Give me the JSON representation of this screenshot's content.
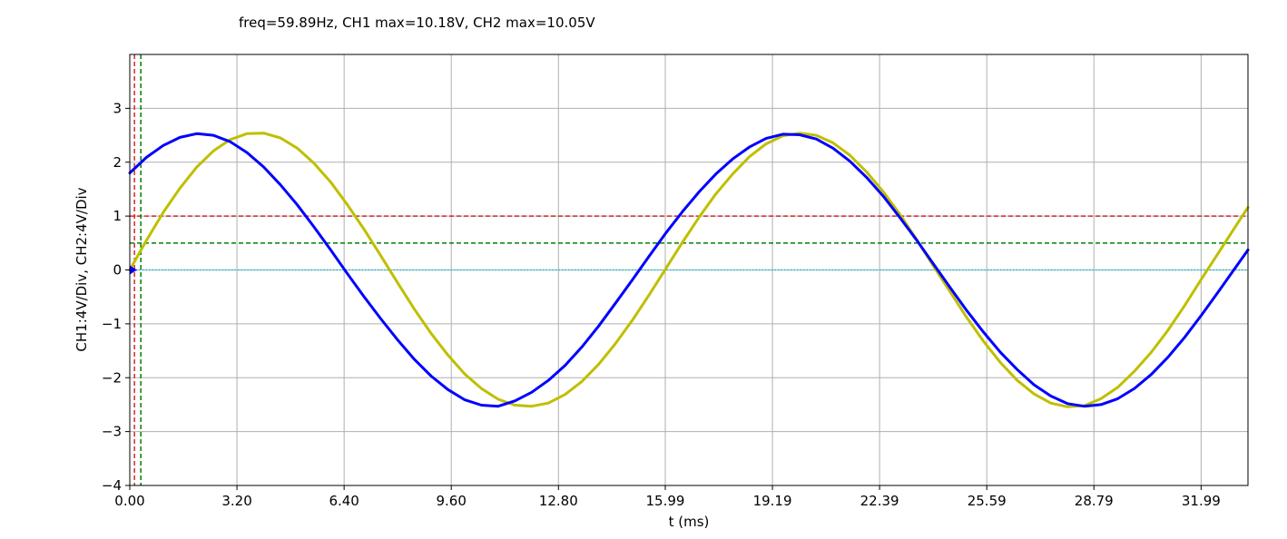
{
  "chart_data": {
    "type": "line",
    "title": "freq=59.89Hz, CH1 max=10.18V, CH2 max=10.05V",
    "xlabel": "t (ms)",
    "ylabel": "CH1:4V/Div, CH2:4V/Div",
    "xlim": [
      0,
      33.39
    ],
    "ylim": [
      -4,
      4
    ],
    "x_ticks": [
      0,
      3.2,
      6.4,
      9.6,
      12.8,
      15.99,
      19.19,
      22.39,
      25.59,
      28.79,
      31.99
    ],
    "x_tick_labels": [
      "0.00",
      "3.20",
      "6.40",
      "9.60",
      "12.80",
      "15.99",
      "19.19",
      "22.39",
      "25.59",
      "28.79",
      "31.99"
    ],
    "y_ticks": [
      -4,
      -3,
      -2,
      -1,
      0,
      1,
      2,
      3
    ],
    "y_tick_labels": [
      "−4",
      "−3",
      "−2",
      "−1",
      "0",
      "1",
      "2",
      "3"
    ],
    "grid": true,
    "colors": {
      "ch1": "#0000ff",
      "ch2": "#bfbf00",
      "ch1_trigger": "#d62728",
      "ch2_trigger": "#008000",
      "zero_line": "#17becf",
      "grid": "#b0b0b0"
    },
    "series": [
      {
        "key": "ch1",
        "x": [
          0,
          0.5,
          1,
          1.5,
          2,
          2.5,
          3,
          3.5,
          4,
          4.5,
          5,
          5.5,
          6,
          6.5,
          7,
          7.5,
          8,
          8.5,
          9,
          9.5,
          10,
          10.5,
          11,
          11.5,
          12,
          12.5,
          13,
          13.5,
          14,
          14.5,
          15,
          15.5,
          16,
          16.5,
          17,
          17.5,
          18,
          18.5,
          19,
          19.5,
          20,
          20.5,
          21,
          21.5,
          22,
          22.5,
          23,
          23.5,
          24,
          24.5,
          25,
          25.5,
          26,
          26.5,
          27,
          27.5,
          28,
          28.5,
          29,
          29.5,
          30,
          30.5,
          31,
          31.5,
          32,
          32.5,
          33,
          33.39
        ],
        "values": [
          1.8,
          2.09,
          2.31,
          2.46,
          2.53,
          2.5,
          2.38,
          2.18,
          1.91,
          1.58,
          1.21,
          0.8,
          0.37,
          -0.07,
          -0.5,
          -0.91,
          -1.3,
          -1.66,
          -1.97,
          -2.22,
          -2.41,
          -2.51,
          -2.53,
          -2.43,
          -2.27,
          -2.05,
          -1.77,
          -1.43,
          -1.04,
          -0.62,
          -0.19,
          0.25,
          0.68,
          1.08,
          1.45,
          1.78,
          2.06,
          2.28,
          2.44,
          2.52,
          2.51,
          2.43,
          2.26,
          2.02,
          1.72,
          1.37,
          0.97,
          0.55,
          0.11,
          -0.33,
          -0.76,
          -1.16,
          -1.53,
          -1.85,
          -2.13,
          -2.34,
          -2.48,
          -2.53,
          -2.5,
          -2.39,
          -2.2,
          -1.94,
          -1.62,
          -1.25,
          -0.84,
          -0.41,
          0.03,
          0.37
        ]
      },
      {
        "key": "ch2",
        "x": [
          0,
          0.5,
          1,
          1.5,
          2,
          2.5,
          3,
          3.5,
          4,
          4.5,
          5,
          5.5,
          6,
          6.5,
          7,
          7.5,
          8,
          8.5,
          9,
          9.5,
          10,
          10.5,
          11,
          11.5,
          12,
          12.5,
          13,
          13.5,
          14,
          14.5,
          15,
          15.5,
          16,
          16.5,
          17,
          17.5,
          18,
          18.5,
          19,
          19.5,
          20,
          20.5,
          21,
          21.5,
          22,
          22.5,
          23,
          23.5,
          24,
          24.5,
          25,
          25.5,
          26,
          26.5,
          27,
          27.5,
          28,
          28.5,
          29,
          29.5,
          30,
          30.5,
          31,
          31.5,
          32,
          32.5,
          33,
          33.39
        ],
        "values": [
          0,
          0.55,
          1.07,
          1.52,
          1.91,
          2.21,
          2.42,
          2.53,
          2.54,
          2.45,
          2.26,
          1.98,
          1.63,
          1.21,
          0.75,
          0.26,
          -0.24,
          -0.73,
          -1.18,
          -1.58,
          -1.93,
          -2.2,
          -2.4,
          -2.51,
          -2.53,
          -2.47,
          -2.31,
          -2.07,
          -1.75,
          -1.37,
          -0.94,
          -0.47,
          0.02,
          0.51,
          0.98,
          1.41,
          1.78,
          2.1,
          2.34,
          2.49,
          2.54,
          2.5,
          2.36,
          2.13,
          1.82,
          1.45,
          1.03,
          0.56,
          0.07,
          -0.41,
          -0.89,
          -1.33,
          -1.72,
          -2.05,
          -2.3,
          -2.47,
          -2.54,
          -2.52,
          -2.39,
          -2.18,
          -1.88,
          -1.53,
          -1.12,
          -0.66,
          -0.17,
          0.31,
          0.79,
          1.16
        ]
      }
    ],
    "reference_lines": {
      "horizontal": [
        {
          "key": "ch1_trigger",
          "y": 1.0,
          "style": "dashed"
        },
        {
          "key": "ch2_trigger",
          "y": 0.5,
          "style": "dashed"
        },
        {
          "key": "zero_line",
          "y": 0.0,
          "style": "dotted"
        }
      ],
      "vertical": [
        {
          "key": "ch1_trigger",
          "x": 0.14,
          "style": "dashed"
        },
        {
          "key": "ch2_trigger",
          "x": 0.33,
          "style": "dashed"
        }
      ]
    },
    "trigger_marker": {
      "x": 0,
      "y": 0
    }
  }
}
